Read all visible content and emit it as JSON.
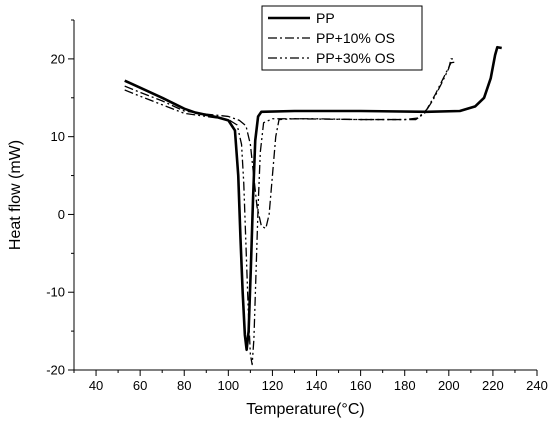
{
  "chart_data": {
    "type": "line",
    "xlabel": "Temperature(°C)",
    "ylabel": "Heat flow (mW)",
    "xlim": [
      30,
      240
    ],
    "ylim": [
      -20,
      25
    ],
    "x_ticks": [
      40,
      60,
      80,
      100,
      120,
      140,
      160,
      180,
      200,
      220,
      240
    ],
    "y_ticks": [
      -20,
      -10,
      0,
      10,
      20
    ],
    "grid": false,
    "legend_position": "top-right",
    "series": [
      {
        "name": "PP",
        "dash": "solid",
        "points": [
          [
            53,
            17.2
          ],
          [
            60,
            16.3
          ],
          [
            70,
            15.0
          ],
          [
            80,
            13.6
          ],
          [
            85,
            13.1
          ],
          [
            90,
            12.8
          ],
          [
            95,
            12.5
          ],
          [
            100,
            12.1
          ],
          [
            103,
            10.8
          ],
          [
            104.5,
            5.0
          ],
          [
            105.5,
            -3.0
          ],
          [
            106.5,
            -10.0
          ],
          [
            107.5,
            -15.5
          ],
          [
            108.3,
            -17.4
          ],
          [
            109.2,
            -15.0
          ],
          [
            110.2,
            -7.0
          ],
          [
            111.2,
            2.0
          ],
          [
            112.2,
            9.5
          ],
          [
            113.5,
            12.6
          ],
          [
            115,
            13.2
          ],
          [
            130,
            13.3
          ],
          [
            160,
            13.3
          ],
          [
            190,
            13.2
          ],
          [
            205,
            13.3
          ],
          [
            212,
            13.9
          ],
          [
            216,
            15.0
          ],
          [
            219,
            17.5
          ],
          [
            221,
            20.5
          ],
          [
            222,
            21.5
          ],
          [
            224,
            21.4
          ]
        ]
      },
      {
        "name": "PP+10% OS",
        "dash": "dash-dot",
        "points": [
          [
            53,
            16.5
          ],
          [
            60,
            15.7
          ],
          [
            70,
            14.6
          ],
          [
            80,
            13.3
          ],
          [
            90,
            12.9
          ],
          [
            100,
            12.6
          ],
          [
            105,
            12.1
          ],
          [
            108,
            11.4
          ],
          [
            110,
            9.0
          ],
          [
            111.5,
            5.0
          ],
          [
            113,
            1.0
          ],
          [
            115,
            -1.5
          ],
          [
            117,
            -1.8
          ],
          [
            118.5,
            0.0
          ],
          [
            120,
            5.0
          ],
          [
            121.5,
            10.0
          ],
          [
            123,
            12.2
          ],
          [
            130,
            12.3
          ],
          [
            160,
            12.2
          ],
          [
            180,
            12.2
          ],
          [
            186,
            12.4
          ],
          [
            190,
            13.5
          ],
          [
            194,
            15.5
          ],
          [
            198,
            17.8
          ],
          [
            201,
            19.5
          ],
          [
            203,
            19.6
          ]
        ]
      },
      {
        "name": "PP+30% OS",
        "dash": "dash-dot-dot",
        "points": [
          [
            53,
            16.0
          ],
          [
            60,
            15.2
          ],
          [
            70,
            14.1
          ],
          [
            80,
            13.0
          ],
          [
            90,
            12.6
          ],
          [
            100,
            12.2
          ],
          [
            104,
            11.5
          ],
          [
            106,
            9.0
          ],
          [
            107,
            4.0
          ],
          [
            108,
            -4.0
          ],
          [
            109,
            -12.0
          ],
          [
            110,
            -18.0
          ],
          [
            110.8,
            -19.3
          ],
          [
            111.6,
            -16.0
          ],
          [
            112.5,
            -8.0
          ],
          [
            113.5,
            1.0
          ],
          [
            114.5,
            8.0
          ],
          [
            116,
            11.8
          ],
          [
            120,
            12.3
          ],
          [
            140,
            12.3
          ],
          [
            160,
            12.2
          ],
          [
            185,
            12.2
          ],
          [
            189,
            13.0
          ],
          [
            193,
            14.8
          ],
          [
            197,
            17.0
          ],
          [
            200,
            18.8
          ],
          [
            201,
            20.0
          ],
          [
            203,
            20.0
          ]
        ]
      }
    ]
  }
}
